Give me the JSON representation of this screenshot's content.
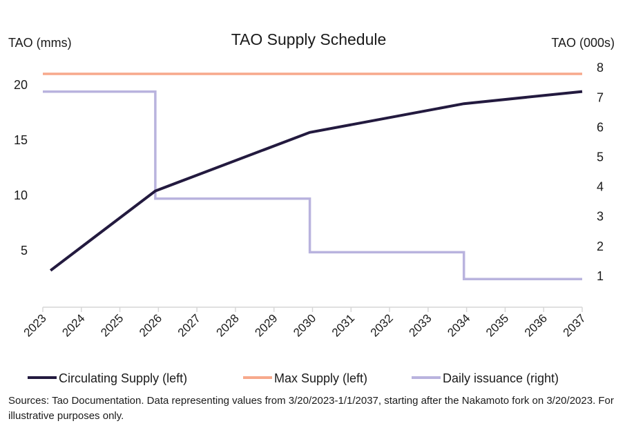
{
  "chart_data": {
    "type": "line",
    "title": "TAO Supply Schedule",
    "ylabel_left": "TAO (mms)",
    "ylabel_right": "TAO (000s)",
    "xlabel": "",
    "x_ticks": [
      "2023",
      "2024",
      "2025",
      "2026",
      "2027",
      "2028",
      "2029",
      "2030",
      "2031",
      "2032",
      "2033",
      "2034",
      "2035",
      "2036",
      "2037"
    ],
    "xlim": [
      2023,
      2037
    ],
    "ylim_left": [
      0,
      22
    ],
    "y_ticks_left": [
      5,
      10,
      15,
      20
    ],
    "ylim_right": [
      0,
      8.2
    ],
    "y_ticks_right": [
      1,
      2,
      3,
      4,
      5,
      6,
      7,
      8
    ],
    "grid": false,
    "legend_placement": "bottom",
    "series": [
      {
        "name": "Circulating Supply (left)",
        "axis": "left",
        "color": "#231a3f",
        "x": [
          2023.2,
          2025.92,
          2029.93,
          2033.93,
          2037.0
        ],
        "y": [
          3.2,
          10.4,
          15.7,
          18.3,
          19.4
        ]
      },
      {
        "name": "Max Supply (left)",
        "axis": "left",
        "color": "#f7a98c",
        "x": [
          2023.0,
          2037.0
        ],
        "y": [
          21,
          21
        ]
      },
      {
        "name": "Daily issuance (right)",
        "axis": "right",
        "color": "#b9b3de",
        "step": true,
        "x": [
          2023.0,
          2025.92,
          2025.92,
          2029.93,
          2029.93,
          2033.93,
          2033.93,
          2037.0
        ],
        "y": [
          7.2,
          7.2,
          3.6,
          3.6,
          1.8,
          1.8,
          0.9,
          0.9
        ]
      }
    ]
  },
  "source_note": "Sources: Tao Documentation. Data representing values from 3/20/2023-1/1/2037, starting after the Nakamoto fork on 3/20/2023. For illustrative purposes only."
}
